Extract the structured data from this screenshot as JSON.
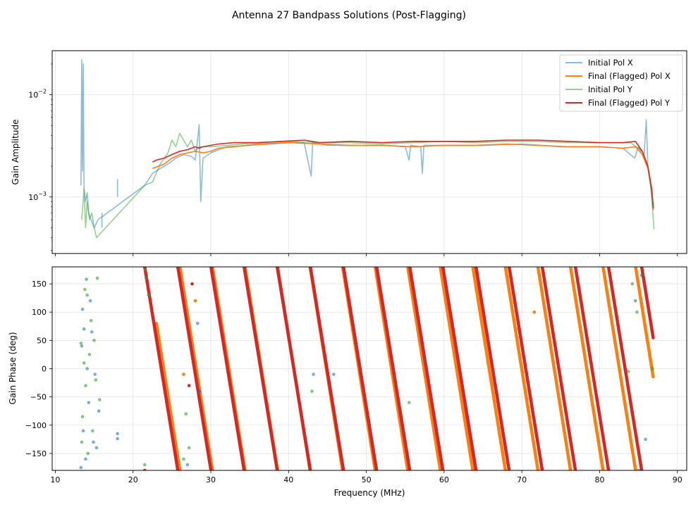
{
  "figure": {
    "title": "Antenna 27 Bandpass Solutions (Post-Flagging)"
  },
  "colors": {
    "blue": "#1f77b4",
    "orange": "#ff7f0e",
    "green": "#2ca02c",
    "red": "#d62728",
    "grid": "#b0b0b0"
  },
  "chart_data": [
    {
      "type": "line",
      "yscale": "log",
      "title": "",
      "xlabel": "",
      "ylabel": "Gain Amplitude",
      "xlim": [
        9.6,
        91.2
      ],
      "ylim": [
        0.00028,
        0.027
      ],
      "yticks": [
        {
          "value": 0.001,
          "base": "10",
          "exp": "−3"
        },
        {
          "value": 0.01,
          "base": "10",
          "exp": "−2"
        }
      ],
      "grid": true,
      "legend": {
        "placement": "top-right",
        "entries": [
          "Initial Pol X",
          "Final (Flagged) Pol X",
          "Initial Pol Y",
          "Final (Flagged) Pol Y"
        ]
      },
      "series": [
        {
          "name": "Initial Pol X",
          "color": "#1f77b4",
          "alpha": 0.5,
          "points": [
            [
              13.3,
              0.0013
            ],
            [
              13.4,
              0.022
            ],
            [
              13.5,
              0.0018
            ],
            [
              13.6,
              0.02
            ],
            [
              13.7,
              0.0012
            ],
            [
              13.9,
              0.0009
            ],
            [
              14.1,
              0.0011
            ],
            [
              14.3,
              0.0007
            ],
            [
              14.6,
              0.0006
            ],
            [
              15.0,
              0.0005
            ],
            [
              15.5,
              0.0006
            ],
            [
              21.5,
              0.0013
            ],
            [
              22.5,
              0.0017
            ],
            [
              23.5,
              0.0019
            ],
            [
              24.5,
              0.0021
            ],
            [
              25.5,
              0.0024
            ],
            [
              26.5,
              0.0026
            ],
            [
              27.5,
              0.0025
            ],
            [
              28.0,
              0.0023
            ],
            [
              28.5,
              0.0051
            ],
            [
              28.7,
              0.0009
            ],
            [
              29.0,
              0.0024
            ],
            [
              30,
              0.0027
            ],
            [
              32,
              0.0031
            ],
            [
              35,
              0.0032
            ],
            [
              38,
              0.0033
            ],
            [
              40,
              0.0034
            ],
            [
              42,
              0.0034
            ],
            [
              42.9,
              0.0016
            ],
            [
              43.1,
              0.0034
            ],
            [
              45,
              0.0032
            ],
            [
              48,
              0.0032
            ],
            [
              52,
              0.0032
            ],
            [
              55,
              0.0031
            ],
            [
              55.5,
              0.0023
            ],
            [
              55.7,
              0.0032
            ],
            [
              57.0,
              0.0031
            ],
            [
              57.2,
              0.0017
            ],
            [
              57.4,
              0.0032
            ],
            [
              60,
              0.0032
            ],
            [
              65,
              0.0032
            ],
            [
              70,
              0.0033
            ],
            [
              75,
              0.0031
            ],
            [
              80,
              0.0031
            ],
            [
              83,
              0.003
            ],
            [
              84.5,
              0.0024
            ],
            [
              85,
              0.0031
            ],
            [
              85.7,
              0.0024
            ],
            [
              86.0,
              0.0057
            ],
            [
              86.2,
              0.002
            ],
            [
              86.6,
              0.0012
            ],
            [
              86.9,
              0.0008
            ]
          ],
          "segments": [
            [
              [
                18.0,
                0.001
              ],
              [
                18.0,
                0.0015
              ]
            ],
            [
              [
                16.0,
                0.0005
              ],
              [
                16.0,
                0.0007
              ]
            ]
          ]
        },
        {
          "name": "Final (Flagged) Pol X",
          "color": "#ff7f0e",
          "alpha": 1.0,
          "points": [
            [
              22.5,
              0.0019
            ],
            [
              24,
              0.0021
            ],
            [
              25,
              0.0024
            ],
            [
              26,
              0.0026
            ],
            [
              27,
              0.0027
            ],
            [
              28,
              0.0028
            ],
            [
              29,
              0.0027
            ],
            [
              30,
              0.0028
            ],
            [
              31,
              0.003
            ],
            [
              33,
              0.0031
            ],
            [
              36,
              0.0033
            ],
            [
              40,
              0.0034
            ],
            [
              44,
              0.0033
            ],
            [
              48,
              0.0032
            ],
            [
              52,
              0.0032
            ],
            [
              56,
              0.0031
            ],
            [
              60,
              0.0032
            ],
            [
              64,
              0.0032
            ],
            [
              68,
              0.0033
            ],
            [
              72,
              0.0032
            ],
            [
              76,
              0.0031
            ],
            [
              80,
              0.0031
            ],
            [
              83,
              0.003
            ],
            [
              84.6,
              0.0031
            ],
            [
              85.5,
              0.0026
            ],
            [
              86.2,
              0.0019
            ],
            [
              86.7,
              0.0012
            ],
            [
              86.9,
              0.00075
            ]
          ]
        },
        {
          "name": "Initial Pol Y",
          "color": "#2ca02c",
          "alpha": 0.5,
          "points": [
            [
              13.4,
              0.0006
            ],
            [
              13.7,
              0.0012
            ],
            [
              13.9,
              0.0005
            ],
            [
              14.1,
              0.0009
            ],
            [
              14.4,
              0.0006
            ],
            [
              14.7,
              0.0007
            ],
            [
              15.0,
              0.0005
            ],
            [
              15.3,
              0.0004
            ],
            [
              21.5,
              0.0013
            ],
            [
              22.5,
              0.0014
            ],
            [
              23.5,
              0.0021
            ],
            [
              24.5,
              0.0027
            ],
            [
              25.0,
              0.0036
            ],
            [
              25.5,
              0.0031
            ],
            [
              26,
              0.0042
            ],
            [
              26.5,
              0.0036
            ],
            [
              27,
              0.0031
            ],
            [
              27.5,
              0.0036
            ],
            [
              28,
              0.0028
            ],
            [
              28.5,
              0.0031
            ],
            [
              30,
              0.0031
            ],
            [
              32,
              0.0032
            ],
            [
              36,
              0.0034
            ],
            [
              40,
              0.0035
            ],
            [
              44,
              0.0034
            ],
            [
              48,
              0.0034
            ],
            [
              52,
              0.0033
            ],
            [
              56,
              0.0034
            ],
            [
              60,
              0.0035
            ],
            [
              64,
              0.0034
            ],
            [
              68,
              0.0035
            ],
            [
              72,
              0.0035
            ],
            [
              76,
              0.0034
            ],
            [
              80,
              0.0034
            ],
            [
              84,
              0.0034
            ],
            [
              85.5,
              0.0028
            ],
            [
              86.2,
              0.002
            ],
            [
              86.6,
              0.0012
            ],
            [
              87.0,
              0.00048
            ]
          ]
        },
        {
          "name": "Final (Flagged) Pol Y",
          "color": "#d62728",
          "alpha": 1.0,
          "points": [
            [
              22.5,
              0.0022
            ],
            [
              23,
              0.0023
            ],
            [
              24,
              0.0024
            ],
            [
              25,
              0.0026
            ],
            [
              26,
              0.0028
            ],
            [
              27,
              0.0029
            ],
            [
              28,
              0.0031
            ],
            [
              28.5,
              0.003
            ],
            [
              29,
              0.0031
            ],
            [
              30,
              0.0032
            ],
            [
              31,
              0.0033
            ],
            [
              33,
              0.0034
            ],
            [
              36,
              0.0034
            ],
            [
              39,
              0.0035
            ],
            [
              42,
              0.0036
            ],
            [
              44,
              0.0034
            ],
            [
              48,
              0.0035
            ],
            [
              52,
              0.0034
            ],
            [
              56,
              0.0035
            ],
            [
              60,
              0.0035
            ],
            [
              64,
              0.0035
            ],
            [
              68,
              0.0036
            ],
            [
              72,
              0.0036
            ],
            [
              76,
              0.0035
            ],
            [
              80,
              0.0034
            ],
            [
              83,
              0.0034
            ],
            [
              84.6,
              0.0035
            ],
            [
              85.5,
              0.0028
            ],
            [
              86.2,
              0.002
            ],
            [
              86.7,
              0.0012
            ],
            [
              86.9,
              0.00078
            ]
          ]
        }
      ]
    },
    {
      "type": "scatter",
      "title": "",
      "xlabel": "Frequency (MHz)",
      "ylabel": "Gain Phase (deg)",
      "xlim": [
        9.6,
        91.2
      ],
      "ylim": [
        -180,
        180
      ],
      "xticks": [
        10,
        20,
        30,
        40,
        50,
        60,
        70,
        80,
        90
      ],
      "yticks": [
        -150,
        -100,
        -50,
        0,
        50,
        100,
        150
      ],
      "grid": true,
      "wrap_model": {
        "Final (Flagged) Pol Y": {
          "start_mhz": 21.5,
          "end_mhz": 86.9,
          "phase_at_start_deg": 180,
          "slope_deg_per_mhz": -84.5
        },
        "Final (Flagged) Pol X": {
          "start_mhz": 23.0,
          "end_mhz": 86.9,
          "phase_at_start_deg": 80,
          "slope_deg_per_mhz": -86.0
        }
      },
      "scattered_points": {
        "Initial Pol X": [
          [
            13.3,
            -175
          ],
          [
            13.4,
            40
          ],
          [
            13.5,
            105
          ],
          [
            13.6,
            -110
          ],
          [
            13.7,
            70
          ],
          [
            13.9,
            -160
          ],
          [
            14.0,
            158
          ],
          [
            14.1,
            0
          ],
          [
            14.3,
            -60
          ],
          [
            14.5,
            120
          ],
          [
            14.7,
            65
          ],
          [
            14.9,
            -130
          ],
          [
            15.1,
            -10
          ],
          [
            15.3,
            -140
          ],
          [
            15.6,
            -75
          ],
          [
            18.0,
            -115
          ],
          [
            18.0,
            -124
          ],
          [
            27.0,
            -170
          ],
          [
            28.3,
            80
          ],
          [
            28.6,
            -40
          ],
          [
            43.2,
            -10
          ],
          [
            45.8,
            -10
          ],
          [
            57.5,
            15
          ],
          [
            84.6,
            120
          ],
          [
            85.0,
            -180
          ],
          [
            85.4,
            165
          ],
          [
            85.9,
            -125
          ]
        ],
        "Initial Pol Y": [
          [
            13.3,
            45
          ],
          [
            13.4,
            -130
          ],
          [
            13.5,
            -85
          ],
          [
            13.7,
            10
          ],
          [
            13.8,
            140
          ],
          [
            13.9,
            -30
          ],
          [
            14.1,
            130
          ],
          [
            14.2,
            -150
          ],
          [
            14.4,
            25
          ],
          [
            14.6,
            85
          ],
          [
            14.8,
            -110
          ],
          [
            15.0,
            50
          ],
          [
            15.2,
            -20
          ],
          [
            15.4,
            160
          ],
          [
            15.7,
            -55
          ],
          [
            21.5,
            -170
          ],
          [
            21.6,
            175
          ],
          [
            21.7,
            160
          ],
          [
            22.0,
            130
          ],
          [
            26.5,
            -160
          ],
          [
            26.8,
            -80
          ],
          [
            27.2,
            -140
          ],
          [
            43.0,
            -40
          ],
          [
            55.5,
            -60
          ],
          [
            83.7,
            -5
          ],
          [
            84.2,
            150
          ],
          [
            84.8,
            100
          ],
          [
            86.8,
            0
          ]
        ]
      },
      "stray_points": {
        "Final (Flagged) Pol Y": [
          [
            27.2,
            -30
          ],
          [
            27.6,
            150
          ]
        ],
        "Final (Flagged) Pol X": [
          [
            26.5,
            -10
          ],
          [
            28.0,
            120
          ],
          [
            71.6,
            100
          ]
        ]
      }
    }
  ],
  "legend_labels": {
    "initial_x": "Initial Pol X",
    "final_x": "Final (Flagged) Pol X",
    "initial_y": "Initial Pol Y",
    "final_y": "Final (Flagged) Pol Y"
  }
}
